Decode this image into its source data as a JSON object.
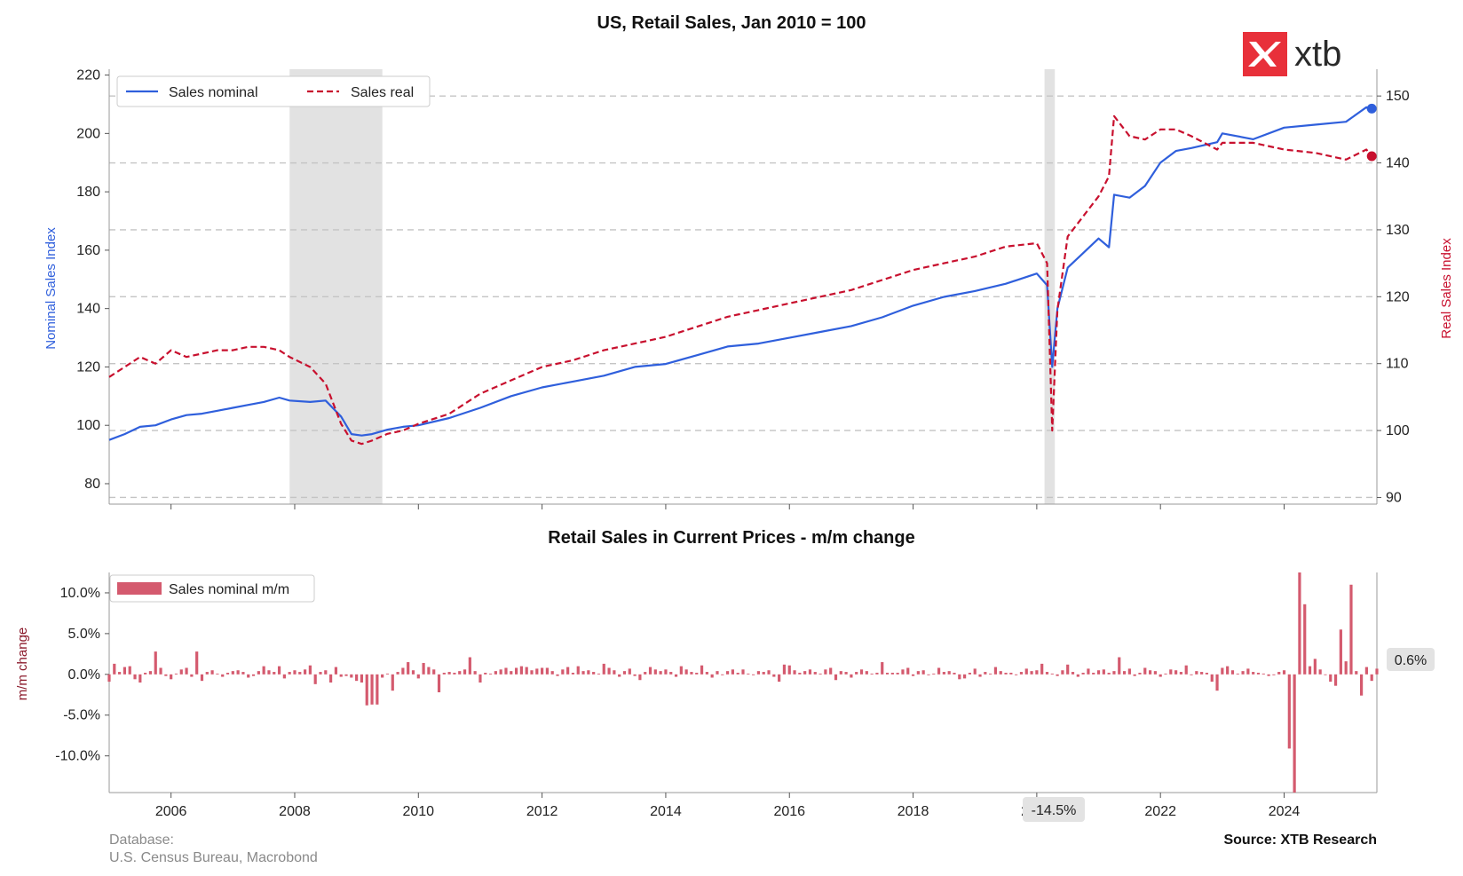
{
  "chart_data": [
    {
      "type": "line",
      "title": "US, Retail Sales, Jan 2010 = 100",
      "y_left_label": "Nominal Sales Index",
      "y_right_label": "Real Sales Index",
      "y_left_lim": [
        73,
        222
      ],
      "y_right_lim": [
        89,
        154
      ],
      "y_left_ticks": [
        "80",
        "100",
        "120",
        "140",
        "160",
        "180",
        "200",
        "220"
      ],
      "y_right_ticks": [
        "90",
        "100",
        "110",
        "120",
        "130",
        "140",
        "150"
      ],
      "x_ticks": [
        "2006",
        "2008",
        "2010",
        "2012",
        "2014",
        "2016",
        "2018",
        "2020",
        "2022",
        "2024"
      ],
      "x_range": [
        2005.0,
        2025.5
      ],
      "grid": "horizontal dashed",
      "legend_position": "top-left",
      "recession_shading": [
        [
          2007.917,
          2009.417
        ],
        [
          2020.125,
          2020.292
        ]
      ],
      "series": [
        {
          "name": "Sales nominal",
          "axis": "left",
          "color": "#2f5fdc",
          "style": "solid",
          "x": [
            2005.0,
            2005.25,
            2005.5,
            2005.75,
            2006.0,
            2006.25,
            2006.5,
            2006.75,
            2007.0,
            2007.25,
            2007.5,
            2007.75,
            2007.917,
            2008.25,
            2008.5,
            2008.75,
            2008.917,
            2009.083,
            2009.25,
            2009.5,
            2009.75,
            2010.0,
            2010.5,
            2011.0,
            2011.5,
            2012.0,
            2012.5,
            2013.0,
            2013.5,
            2014.0,
            2014.5,
            2015.0,
            2015.5,
            2016.0,
            2016.5,
            2017.0,
            2017.5,
            2018.0,
            2018.5,
            2019.0,
            2019.5,
            2020.0,
            2020.167,
            2020.25,
            2020.333,
            2020.5,
            2020.75,
            2021.0,
            2021.167,
            2021.25,
            2021.5,
            2021.75,
            2022.0,
            2022.25,
            2022.5,
            2022.917,
            2023.0,
            2023.5,
            2024.0,
            2024.5,
            2025.0,
            2025.33,
            2025.417
          ],
          "y": [
            95,
            97,
            99.5,
            100,
            102,
            103.5,
            104,
            105,
            106,
            107,
            108,
            109.5,
            108.5,
            108,
            108.5,
            103,
            97,
            96.5,
            97,
            98.5,
            99.5,
            100,
            102.5,
            106,
            110,
            113,
            115,
            117,
            120,
            121,
            124,
            127,
            128,
            130,
            132,
            134,
            137,
            141,
            144,
            146,
            148.5,
            152,
            148,
            120,
            140,
            154,
            159,
            164,
            161,
            179,
            178,
            182,
            190,
            194,
            195,
            197,
            200,
            198,
            202,
            203,
            204,
            209,
            208.5
          ]
        },
        {
          "name": "Sales real",
          "axis": "right",
          "color": "#c8102e",
          "style": "dashed",
          "x": [
            2005.0,
            2005.25,
            2005.5,
            2005.75,
            2006.0,
            2006.25,
            2006.5,
            2006.75,
            2007.0,
            2007.25,
            2007.5,
            2007.75,
            2007.917,
            2008.25,
            2008.5,
            2008.75,
            2008.917,
            2009.083,
            2009.25,
            2009.5,
            2009.75,
            2010.0,
            2010.5,
            2011.0,
            2011.5,
            2012.0,
            2012.5,
            2013.0,
            2013.5,
            2014.0,
            2014.5,
            2015.0,
            2015.5,
            2016.0,
            2016.5,
            2017.0,
            2017.5,
            2018.0,
            2018.5,
            2019.0,
            2019.5,
            2020.0,
            2020.167,
            2020.25,
            2020.333,
            2020.5,
            2020.75,
            2021.0,
            2021.167,
            2021.25,
            2021.5,
            2021.75,
            2022.0,
            2022.25,
            2022.5,
            2022.917,
            2023.0,
            2023.5,
            2024.0,
            2024.5,
            2025.0,
            2025.33,
            2025.417
          ],
          "y": [
            108,
            109.5,
            111,
            110,
            112,
            111,
            111.5,
            112,
            112,
            112.5,
            112.5,
            112,
            111,
            109.5,
            107,
            101,
            98.5,
            98,
            98.5,
            99.5,
            100,
            101,
            102.5,
            105.5,
            107.5,
            109.5,
            110.5,
            112,
            113,
            114,
            115.5,
            117,
            118,
            119,
            120,
            121,
            122.5,
            124,
            125,
            126,
            127.5,
            128,
            125,
            100,
            118,
            129,
            132,
            135,
            138,
            147,
            144,
            143.5,
            145,
            145,
            144,
            142,
            143,
            143,
            142,
            141.5,
            140.5,
            142,
            141
          ]
        }
      ]
    },
    {
      "type": "bar",
      "title": "Retail Sales in Current Prices - m/m change",
      "ylabel": "m/m change",
      "ylim": [
        -14.5,
        12.5
      ],
      "y_ticks": [
        "10.0%",
        "5.0%",
        "0.0%",
        "-5.0%",
        "-10.0%"
      ],
      "legend_position": "top-left",
      "x_start": 2005.0,
      "x_step_months": 1,
      "series": [
        {
          "name": "Sales nominal m/m",
          "color": "#d45a6e",
          "values": [
            -0.9,
            1.3,
            0.3,
            0.9,
            1.0,
            -0.6,
            -1.0,
            0.2,
            0.4,
            2.8,
            0.8,
            -0.2,
            -0.6,
            0.1,
            0.6,
            0.8,
            -0.3,
            2.8,
            -0.8,
            0.3,
            0.5,
            0.1,
            -0.3,
            0.2,
            0.4,
            0.5,
            0.3,
            -0.4,
            -0.2,
            0.4,
            1.0,
            0.5,
            0.3,
            1.0,
            -0.5,
            0.3,
            0.5,
            0.3,
            0.6,
            1.1,
            -1.2,
            0.3,
            0.5,
            -1.0,
            0.9,
            -0.3,
            -0.2,
            -0.4,
            -0.8,
            -1.0,
            -3.8,
            -3.7,
            -3.7,
            -0.4,
            0.1,
            -2.0,
            0.3,
            0.8,
            1.5,
            0.5,
            -0.5,
            1.4,
            0.9,
            0.6,
            -2.2,
            0.2,
            0.3,
            0.2,
            0.4,
            0.6,
            2.1,
            0.4,
            -1.0,
            0.2,
            0.1,
            0.4,
            0.6,
            0.8,
            0.4,
            0.8,
            1.0,
            0.9,
            0.5,
            0.7,
            0.8,
            0.8,
            0.4,
            -0.2,
            0.6,
            0.9,
            0.2,
            1.0,
            0.4,
            0.5,
            0.3,
            0.1,
            1.3,
            0.8,
            0.5,
            -0.3,
            0.4,
            0.7,
            -0.2,
            -0.7,
            0.3,
            0.9,
            0.6,
            0.4,
            0.6,
            0.3,
            -0.3,
            1.0,
            0.6,
            0.3,
            0.2,
            1.1,
            0.3,
            -0.4,
            0.4,
            -0.1,
            0.4,
            0.6,
            0.2,
            0.6,
            0.1,
            -0.1,
            0.4,
            0.3,
            0.5,
            -0.3,
            -0.9,
            1.2,
            1.1,
            0.5,
            0.2,
            0.4,
            0.6,
            0.3,
            0.1,
            0.6,
            0.8,
            -0.7,
            0.4,
            0.3,
            -0.4,
            0.3,
            0.6,
            0.4,
            0.1,
            0.2,
            1.5,
            0.2,
            0.2,
            0.2,
            0.6,
            0.8,
            -0.2,
            0.4,
            0.5,
            -0.1,
            0.1,
            0.8,
            0.3,
            0.4,
            0.2,
            -0.6,
            -0.5,
            0.2,
            0.7,
            -0.3,
            0.3,
            0.1,
            0.9,
            0.4,
            0.2,
            0.2,
            -0.1,
            0.3,
            0.7,
            0.4,
            0.5,
            1.3,
            0.3,
            0.1,
            -0.2,
            0.5,
            1.2,
            0.3,
            -0.3,
            0.2,
            0.7,
            0.2,
            0.5,
            0.6,
            0.2,
            0.4,
            2.1,
            0.4,
            0.7,
            -0.2,
            0.2,
            0.8,
            0.5,
            0.4,
            -0.3,
            0.1,
            0.6,
            0.5,
            0.3,
            1.1,
            -0.1,
            0.4,
            0.3,
            0.2,
            -0.9,
            -2.0,
            0.8,
            1.0,
            0.5,
            0.1,
            0.4,
            0.7,
            0.3,
            0.2,
            0.1,
            -0.2,
            -0.1,
            0.3,
            0.5,
            -9.1,
            -14.5,
            12.5,
            8.6,
            1.0,
            1.9,
            0.6,
            0.0,
            -0.9,
            -1.4,
            5.5,
            1.6,
            11.0,
            0.4,
            -2.6,
            0.9,
            -0.8,
            0.7,
            1.8,
            0.2,
            -0.8,
            0.8,
            1.2,
            1.8,
            2.0,
            0.9,
            -0.2,
            1.0,
            0.2,
            1.3,
            -0.4,
            0.1,
            0.6,
            0.3,
            -1.0,
            0.0,
            1.6,
            0.6,
            -1.0,
            -0.9,
            3.9,
            -0.2,
            0.5,
            0.3,
            0.2,
            0.7,
            0.3,
            0.5,
            0.3,
            0.5,
            -0.1,
            0.6,
            0.3,
            -1.0,
            0.6,
            0.5,
            0.2,
            0.5,
            0.1,
            1.1,
            0.4,
            0.6,
            0.3,
            0.1,
            -0.1,
            0.4,
            0.8,
            0.4,
            0.3,
            -1.0,
            0.1,
            0.2,
            0.8,
            0.3,
            -0.9,
            1.5,
            0.1,
            -0.9,
            0.6
          ]
        }
      ],
      "annotations": {
        "last_value": "0.6%",
        "min_value": "-14.5%"
      }
    }
  ],
  "footer": {
    "database_label": "Database:",
    "database_source": "U.S. Census Bureau, Macrobond",
    "source": "Source: XTB Research"
  },
  "logo": {
    "text": "xtb",
    "icon": "xtb-logo-icon",
    "brand_color": "#e8303a"
  }
}
